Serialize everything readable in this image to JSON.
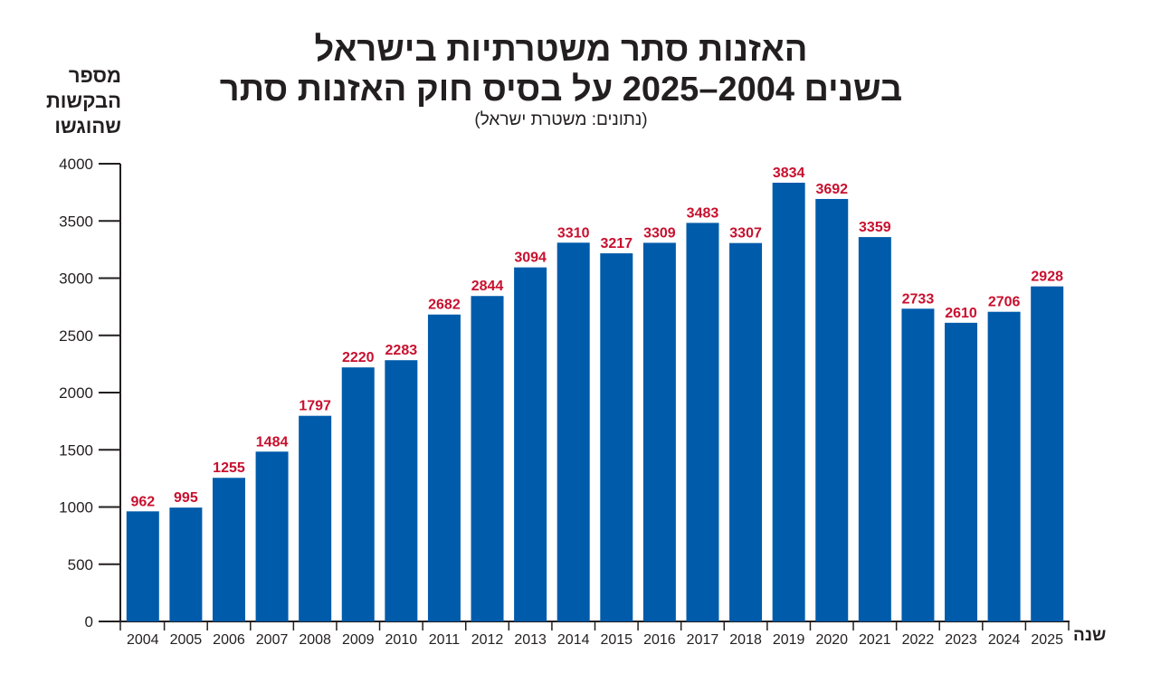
{
  "chart_data": {
    "type": "bar",
    "title": "האזנות סתר משטרתיות בישראל",
    "subtitle": "בשנים 2004–2025 על בסיס חוק האזנות סתר",
    "source": "(נתונים: משטרת ישראל)",
    "ylabel": "מספר הבקשות שהוגשו",
    "xlabel": "שנה",
    "ylim": [
      0,
      4000
    ],
    "yticks": [
      0,
      500,
      1000,
      1500,
      2000,
      2500,
      3000,
      3500,
      4000
    ],
    "grid": false,
    "categories": [
      "2004",
      "2005",
      "2006",
      "2007",
      "2008",
      "2009",
      "2010",
      "2011",
      "2012",
      "2013",
      "2014",
      "2015",
      "2016",
      "2017",
      "2018",
      "2019",
      "2020",
      "2021",
      "2022",
      "2023",
      "2024",
      "2025"
    ],
    "values": [
      962,
      995,
      1255,
      1484,
      1797,
      2220,
      2283,
      2682,
      2844,
      3094,
      3310,
      3217,
      3309,
      3483,
      3307,
      3834,
      3692,
      3359,
      2733,
      2610,
      2706,
      2928
    ],
    "colors": {
      "bar": "#005bab",
      "label": "#c8102e",
      "axis": "#231f20"
    }
  }
}
